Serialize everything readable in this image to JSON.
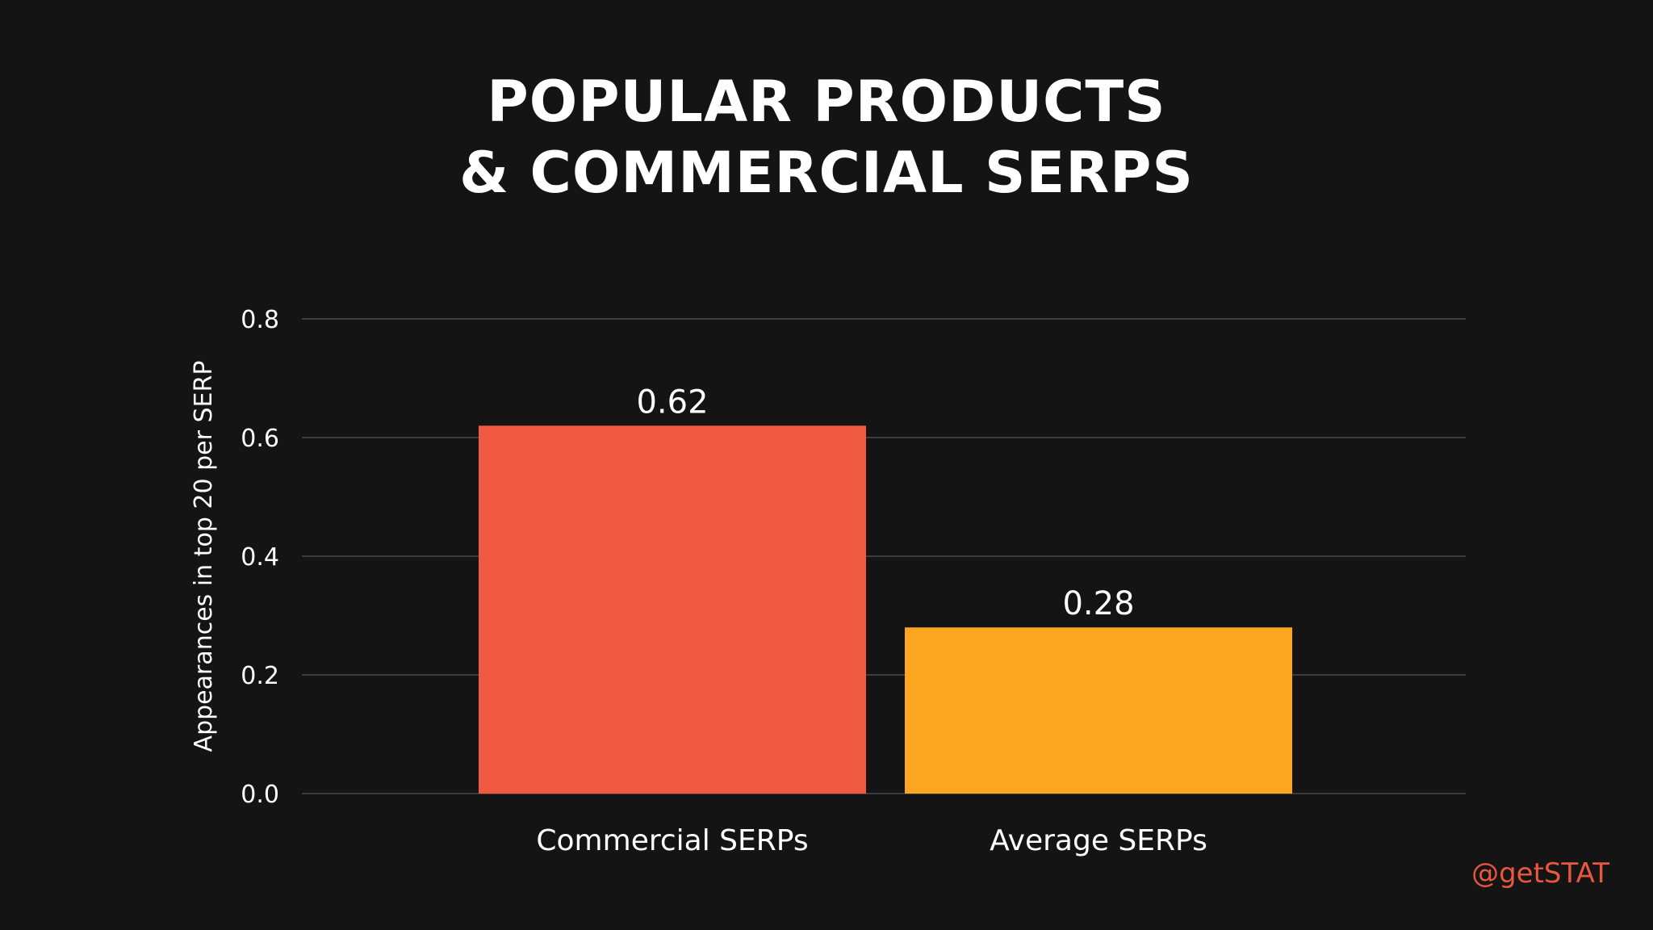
{
  "title": {
    "line1": "POPULAR PRODUCTS",
    "line2": "& COMMERCIAL SERPS"
  },
  "handle": "@getSTAT",
  "chart_data": {
    "type": "bar",
    "categories": [
      "Commercial SERPs",
      "Average SERPs"
    ],
    "values": [
      0.62,
      0.28
    ],
    "data_labels": [
      "0.62",
      "0.28"
    ],
    "colors": [
      "#ef5a40",
      "#fba61e"
    ],
    "xlabel": "",
    "ylabel": "Appearances in top 20 per SERP",
    "ylim": [
      0,
      0.8
    ],
    "yticks": [
      0.0,
      0.2,
      0.4,
      0.6,
      0.8
    ],
    "ytick_labels": [
      "0.0",
      "0.2",
      "0.4",
      "0.6",
      "0.8"
    ],
    "grid": true,
    "legend": "none"
  }
}
